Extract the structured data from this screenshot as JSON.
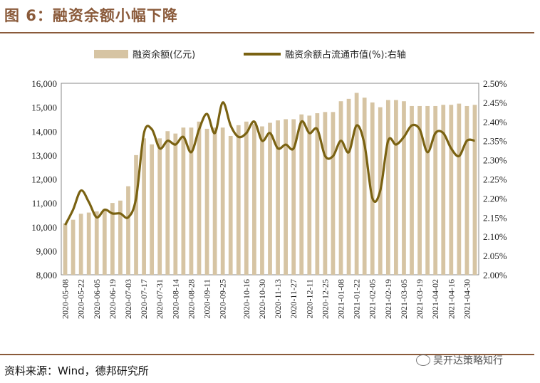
{
  "title": "图 6：融资余额小幅下降",
  "source": "资料来源：Wind，德邦研究所",
  "watermark": "吴开达策略知行",
  "colors": {
    "bar": "#d6c4a3",
    "line": "#7a6212",
    "accent": "#8a5a3a"
  },
  "chart_data": {
    "type": "bar+line",
    "legend_position": "top",
    "grid": false,
    "categories": [
      "2020-05-08",
      "2020-05-15",
      "2020-05-22",
      "2020-05-29",
      "2020-06-05",
      "2020-06-12",
      "2020-06-19",
      "2020-06-26",
      "2020-07-03",
      "2020-07-10",
      "2020-07-17",
      "2020-07-24",
      "2020-07-31",
      "2020-08-07",
      "2020-08-14",
      "2020-08-21",
      "2020-08-28",
      "2020-09-04",
      "2020-09-11",
      "2020-09-18",
      "2020-09-25",
      "2020-10-02",
      "2020-10-09",
      "2020-10-16",
      "2020-10-23",
      "2020-10-30",
      "2020-11-06",
      "2020-11-13",
      "2020-11-20",
      "2020-11-27",
      "2020-12-04",
      "2020-12-11",
      "2020-12-18",
      "2020-12-25",
      "2021-01-01",
      "2021-01-08",
      "2021-01-15",
      "2021-01-22",
      "2021-01-29",
      "2021-02-05",
      "2021-02-12",
      "2021-02-19",
      "2021-02-26",
      "2021-03-05",
      "2021-03-12",
      "2021-03-19",
      "2021-03-26",
      "2021-04-02",
      "2021-04-09",
      "2021-04-16",
      "2021-04-23",
      "2021-04-30",
      "2021-05-07"
    ],
    "x_tick_labels": [
      "2020-05-08",
      "2020-05-22",
      "2020-06-05",
      "2020-06-19",
      "2020-07-03",
      "2020-07-17",
      "2020-07-31",
      "2020-08-14",
      "2020-08-28",
      "2020-09-11",
      "2020-09-25",
      "2020-10-16",
      "2020-10-30",
      "2020-11-13",
      "2020-11-27",
      "2020-12-11",
      "2020-12-25",
      "2021-01-08",
      "2021-01-22",
      "2021-02-05",
      "2021-02-19",
      "2021-03-05",
      "2021-03-19",
      "2021-04-02",
      "2021-04-16",
      "2021-04-30"
    ],
    "y_left": {
      "ylim": [
        8000,
        16000
      ],
      "ticks": [
        "8,000",
        "9,000",
        "10,000",
        "11,000",
        "12,000",
        "13,000",
        "14,000",
        "15,000",
        "16,000"
      ]
    },
    "y_right": {
      "ylim": [
        2.0,
        2.5
      ],
      "ticks": [
        "2.00%",
        "2.05%",
        "2.10%",
        "2.15%",
        "2.20%",
        "2.25%",
        "2.30%",
        "2.35%",
        "2.40%",
        "2.45%",
        "2.50%"
      ]
    },
    "series": [
      {
        "name": "融资余额(亿元)",
        "kind": "bar",
        "axis": "left",
        "values": [
          10150,
          10300,
          10550,
          10600,
          10650,
          10750,
          11000,
          11100,
          11700,
          13000,
          13700,
          13450,
          13700,
          14000,
          13900,
          14150,
          14150,
          14400,
          14100,
          14150,
          14150,
          13800,
          14250,
          14400,
          14300,
          14200,
          14350,
          14450,
          14500,
          14500,
          14700,
          14650,
          14750,
          14800,
          14800,
          15250,
          15350,
          15600,
          15400,
          15200,
          15000,
          15300,
          15300,
          15250,
          15050,
          15050,
          15050,
          15050,
          15100,
          15100,
          15150,
          15050,
          15100
        ]
      },
      {
        "name": "融资余额占流通市值(%):右轴",
        "kind": "line",
        "axis": "right",
        "values": [
          2.13,
          2.17,
          2.22,
          2.19,
          2.15,
          2.17,
          2.16,
          2.16,
          2.15,
          2.2,
          2.37,
          2.38,
          2.33,
          2.35,
          2.34,
          2.36,
          2.32,
          2.38,
          2.42,
          2.37,
          2.45,
          2.39,
          2.36,
          2.37,
          2.4,
          2.35,
          2.37,
          2.33,
          2.34,
          2.33,
          2.4,
          2.37,
          2.38,
          2.31,
          2.31,
          2.35,
          2.32,
          2.39,
          2.34,
          2.2,
          2.22,
          2.35,
          2.34,
          2.36,
          2.39,
          2.38,
          2.32,
          2.37,
          2.37,
          2.33,
          2.31,
          2.35,
          2.35
        ]
      }
    ]
  }
}
